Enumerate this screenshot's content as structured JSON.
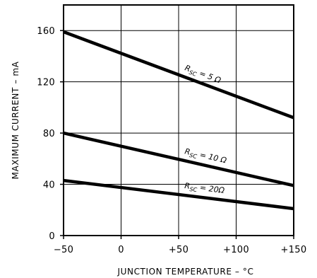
{
  "chart_data": {
    "type": "line",
    "xlabel": "JUNCTION TEMPERATURE – °C",
    "ylabel": "MAXIMUM CURRENT – mA",
    "xlim": [
      -50,
      150
    ],
    "ylim": [
      0,
      180
    ],
    "x_ticks": [
      -50,
      0,
      50,
      100,
      150
    ],
    "x_tick_labels": [
      "−50",
      "0",
      "+50",
      "+100",
      "+150"
    ],
    "y_ticks": [
      0,
      40,
      80,
      120,
      160
    ],
    "y_tick_labels": [
      "0",
      "40",
      "80",
      "120",
      "160"
    ],
    "grid": true,
    "series": [
      {
        "name": "RSC = 5 Ω",
        "label_main": "R",
        "label_sub": "SC",
        "label_rest": " = 5 Ω",
        "x": [
          -50,
          150
        ],
        "y": [
          159,
          92
        ]
      },
      {
        "name": "RSC = 10 Ω",
        "label_main": "R",
        "label_sub": "SC",
        "label_rest": " = 10 Ω",
        "x": [
          -50,
          150
        ],
        "y": [
          80,
          39
        ]
      },
      {
        "name": "RSC = 20Ω",
        "label_main": "R",
        "label_sub": "SC",
        "label_rest": " = 20Ω",
        "x": [
          -50,
          150
        ],
        "y": [
          43,
          21
        ]
      }
    ],
    "colors": {
      "line": "#000000",
      "grid": "#000000",
      "background": "#ffffff"
    }
  }
}
